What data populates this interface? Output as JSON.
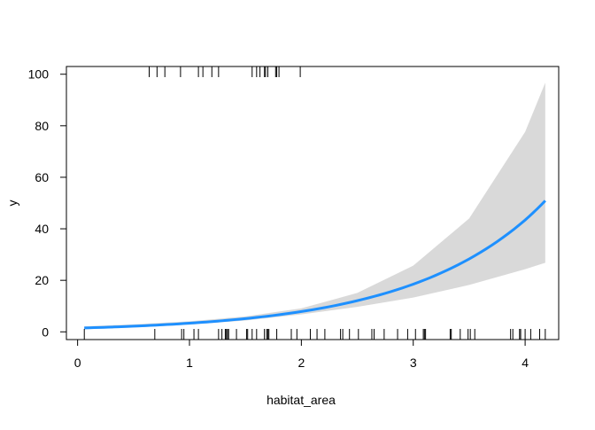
{
  "chart_data": {
    "type": "line",
    "title": "",
    "xlabel": "habitat_area",
    "ylabel": "y",
    "xlim": [
      -0.1,
      4.3
    ],
    "ylim": [
      -3,
      103
    ],
    "xticks": [
      0,
      1,
      2,
      3,
      4
    ],
    "yticks": [
      0,
      20,
      40,
      60,
      80,
      100
    ],
    "grid": false,
    "colors": {
      "fit": "#1E90FF",
      "band": "#D9D9D9",
      "rug": "#000000"
    },
    "fit": {
      "x": [
        0.06,
        0.5,
        1,
        1.5,
        2,
        2.5,
        3,
        3.5,
        4,
        4.18
      ],
      "y": [
        1.51,
        2.19,
        3.36,
        5.14,
        7.87,
        12.1,
        18.5,
        28.3,
        43.4,
        50.9
      ],
      "lower": [
        1.06,
        1.65,
        2.75,
        4.42,
        6.77,
        9.7,
        13.3,
        18.2,
        24.3,
        26.8
      ],
      "upper": [
        2.14,
        2.9,
        4.1,
        5.97,
        9.14,
        15.1,
        25.7,
        44.0,
        77.6,
        96.7
      ]
    },
    "rug_top": [
      0.64,
      0.71,
      0.78,
      0.92,
      1.08,
      1.12,
      1.2,
      1.26,
      1.56,
      1.6,
      1.63,
      1.67,
      1.68,
      1.7,
      1.77,
      1.78,
      1.8,
      1.99
    ],
    "rug_bottom": [
      0.06,
      0.69,
      0.93,
      0.95,
      1.04,
      1.08,
      1.26,
      1.29,
      1.32,
      1.33,
      1.34,
      1.35,
      1.42,
      1.51,
      1.52,
      1.56,
      1.6,
      1.67,
      1.69,
      1.7,
      1.71,
      1.78,
      1.91,
      1.96,
      2.08,
      2.14,
      2.21,
      2.35,
      2.37,
      2.43,
      2.51,
      2.63,
      2.65,
      2.74,
      2.86,
      2.95,
      3.02,
      3.09,
      3.1,
      3.11,
      3.33,
      3.34,
      3.42,
      3.49,
      3.51,
      3.55,
      3.87,
      3.89,
      3.95,
      3.96,
      4.0,
      4.05,
      4.13,
      4.18
    ]
  }
}
